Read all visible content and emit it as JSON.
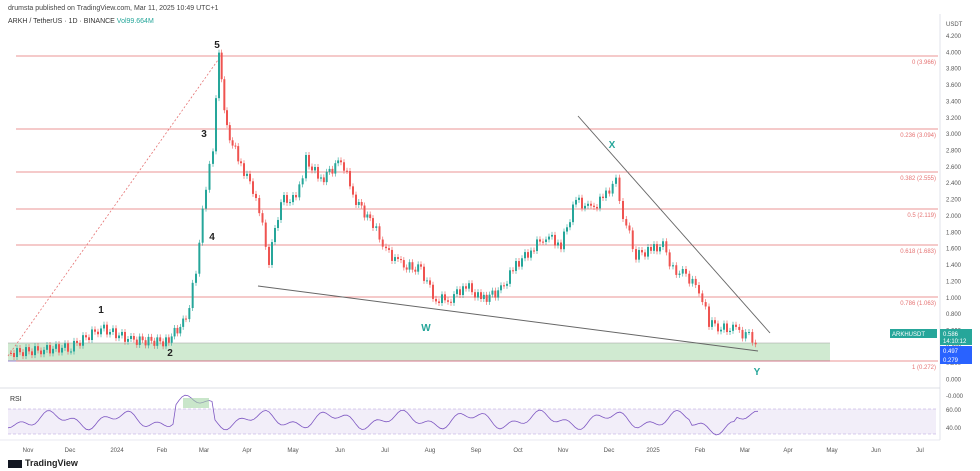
{
  "header": {
    "published": "drumsta published on TradingView.com, Mar 11, 2025 10:49 UTC+1",
    "symbol": "ARKH / TetherUS · 1D · BINANCE",
    "volume": "Vol99.664M"
  },
  "price_axis": {
    "currency": "USDT",
    "ticks": [
      "4.200",
      "4.000",
      "3.800",
      "3.600",
      "3.400",
      "3.200",
      "3.000",
      "2.800",
      "2.600",
      "2.400",
      "2.200",
      "2.000",
      "1.800",
      "1.600",
      "1.400",
      "1.200",
      "1.000",
      "0.800",
      "0.600",
      "0.400",
      "0.200",
      "0.000",
      "-0.000"
    ]
  },
  "time_axis": {
    "ticks": [
      "Nov",
      "Dec",
      "2024",
      "Feb",
      "Mar",
      "Apr",
      "May",
      "Jun",
      "Jul",
      "Aug",
      "Sep",
      "Oct",
      "Nov",
      "Dec",
      "2025",
      "Feb",
      "Mar",
      "Apr",
      "May",
      "Jun",
      "Jul"
    ]
  },
  "fib_levels": [
    {
      "label": "0 (3.966)"
    },
    {
      "label": "0.236 (3.094)"
    },
    {
      "label": "0.382 (2.555)"
    },
    {
      "label": "0.5 (2.119)"
    },
    {
      "label": "0.618 (1.683)"
    },
    {
      "label": "0.786 (1.063)"
    },
    {
      "label": "1 (0.272)"
    }
  ],
  "waves": [
    "1",
    "2",
    "3",
    "4",
    "5",
    "W",
    "X",
    "Y"
  ],
  "price_tags": {
    "ticker": "ARKHUSDT",
    "last": "0.586",
    "countdown": "14:10:12",
    "zone_top": "0.497",
    "zone_bottom": "0.279"
  },
  "rsi": {
    "label": "RSI",
    "ticks": [
      "60.00",
      "40.00"
    ]
  },
  "brand": "TradingView",
  "colors": {
    "up": "#26a69a",
    "down": "#ef5350",
    "fib": "#e57373",
    "zone": "#c8e6c9"
  }
}
